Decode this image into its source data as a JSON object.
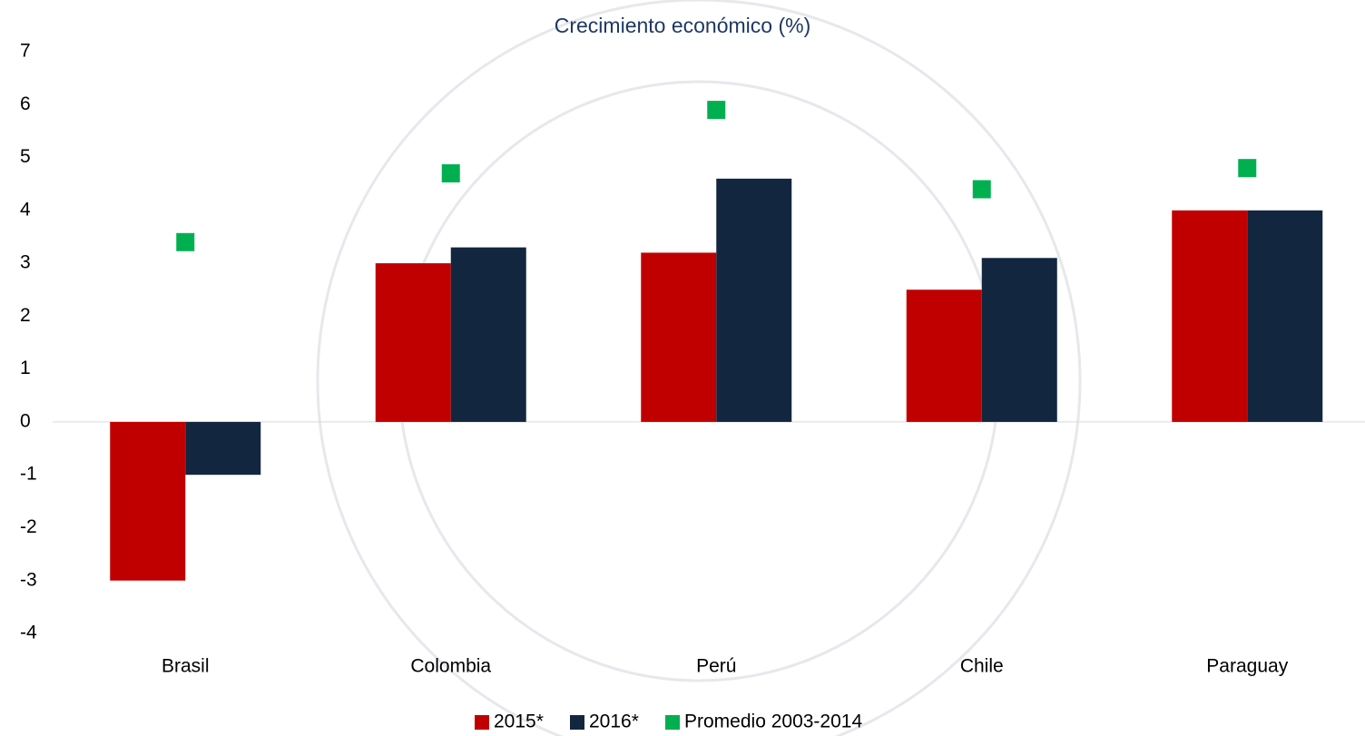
{
  "chart_data": {
    "type": "bar",
    "title": "Crecimiento económico (%)",
    "categories": [
      "Brasil",
      "Colombia",
      "Perú",
      "Chile",
      "Paraguay"
    ],
    "series": [
      {
        "name": "2015*",
        "color": "#c00000",
        "values": [
          -3,
          3.0,
          3.2,
          2.5,
          4.0
        ]
      },
      {
        "name": "2016*",
        "color": "#13263f",
        "values": [
          -1,
          3.3,
          4.6,
          3.1,
          4.0
        ]
      },
      {
        "name": "Promedio 2003-2014",
        "color": "#00b050",
        "style": "marker",
        "values": [
          3.4,
          4.7,
          5.9,
          4.4,
          4.8
        ]
      }
    ],
    "ylim": [
      -4,
      7
    ],
    "yticks": [
      -4,
      -3,
      -2,
      -1,
      0,
      1,
      2,
      3,
      4,
      5,
      6,
      7
    ],
    "grid": false,
    "legend": "bottom"
  }
}
